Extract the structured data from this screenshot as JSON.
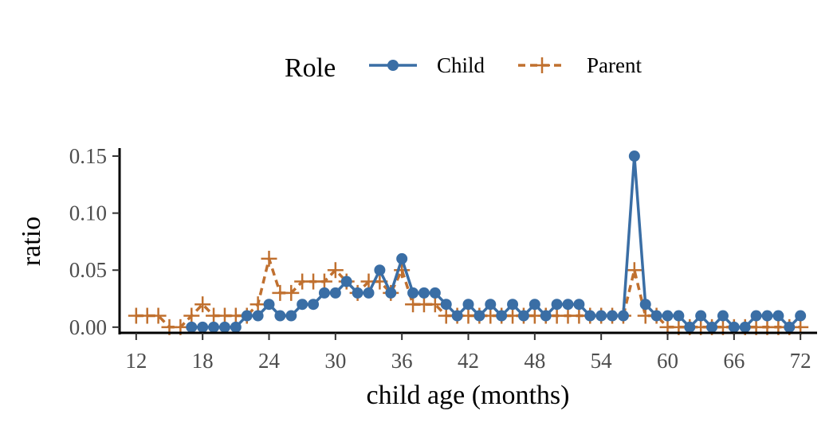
{
  "chart_data": {
    "type": "line",
    "title": "",
    "xlabel": "child age (months)",
    "ylabel": "ratio",
    "xlim": [
      10.5,
      73.5
    ],
    "ylim": [
      -0.005,
      0.157
    ],
    "xticks": [
      12,
      18,
      24,
      30,
      36,
      42,
      48,
      54,
      60,
      66,
      72
    ],
    "yticks": [
      0.0,
      0.05,
      0.1,
      0.15
    ],
    "ytick_labels": [
      "0.00",
      "0.05",
      "0.10",
      "0.15"
    ],
    "grid": false,
    "legend": {
      "title": "Role",
      "position": "top"
    },
    "series": [
      {
        "name": "Child",
        "color": "#3a6ea5",
        "line_style": "solid",
        "marker": "circle",
        "x": [
          17,
          18,
          19,
          20,
          21,
          22,
          23,
          24,
          25,
          26,
          27,
          28,
          29,
          30,
          31,
          32,
          33,
          34,
          35,
          36,
          37,
          38,
          39,
          40,
          41,
          42,
          43,
          44,
          45,
          46,
          47,
          48,
          49,
          50,
          51,
          52,
          53,
          54,
          55,
          56,
          57,
          58,
          59,
          60,
          61,
          62,
          63,
          64,
          65,
          66,
          67,
          68,
          69,
          70,
          71,
          72
        ],
        "y": [
          0,
          0,
          0,
          0,
          0,
          0.01,
          0.01,
          0.02,
          0.01,
          0.01,
          0.02,
          0.02,
          0.03,
          0.03,
          0.04,
          0.03,
          0.03,
          0.05,
          0.03,
          0.06,
          0.03,
          0.03,
          0.03,
          0.02,
          0.01,
          0.02,
          0.01,
          0.02,
          0.01,
          0.02,
          0.01,
          0.02,
          0.01,
          0.02,
          0.02,
          0.02,
          0.01,
          0.01,
          0.01,
          0.01,
          0.15,
          0.02,
          0.01,
          0.01,
          0.01,
          0,
          0.01,
          0,
          0.01,
          0,
          0,
          0.01,
          0.01,
          0.01,
          0,
          0.01
        ]
      },
      {
        "name": "Parent",
        "color": "#c0702f",
        "line_style": "dashed",
        "marker": "plus",
        "x": [
          12,
          13,
          14,
          15,
          16,
          17,
          18,
          19,
          20,
          21,
          22,
          23,
          24,
          25,
          26,
          27,
          28,
          29,
          30,
          31,
          32,
          33,
          34,
          35,
          36,
          37,
          38,
          39,
          40,
          41,
          42,
          43,
          44,
          45,
          46,
          47,
          48,
          49,
          50,
          51,
          52,
          53,
          54,
          55,
          56,
          57,
          58,
          59,
          60,
          61,
          62,
          63,
          64,
          65,
          66,
          67,
          68,
          69,
          70,
          71,
          72
        ],
        "y": [
          0.01,
          0.01,
          0.01,
          0,
          0,
          0.01,
          0.02,
          0.01,
          0.01,
          0.01,
          0.01,
          0.02,
          0.06,
          0.03,
          0.03,
          0.04,
          0.04,
          0.04,
          0.05,
          0.04,
          0.03,
          0.04,
          0.04,
          0.03,
          0.05,
          0.02,
          0.02,
          0.02,
          0.01,
          0.01,
          0.01,
          0.01,
          0.01,
          0.01,
          0.01,
          0.01,
          0.01,
          0.01,
          0.01,
          0.01,
          0.01,
          0.01,
          0.01,
          0.01,
          0.01,
          0.05,
          0.01,
          0.01,
          0,
          0,
          0,
          0,
          0,
          0,
          0,
          0,
          0,
          0,
          0,
          0,
          0
        ]
      }
    ]
  }
}
